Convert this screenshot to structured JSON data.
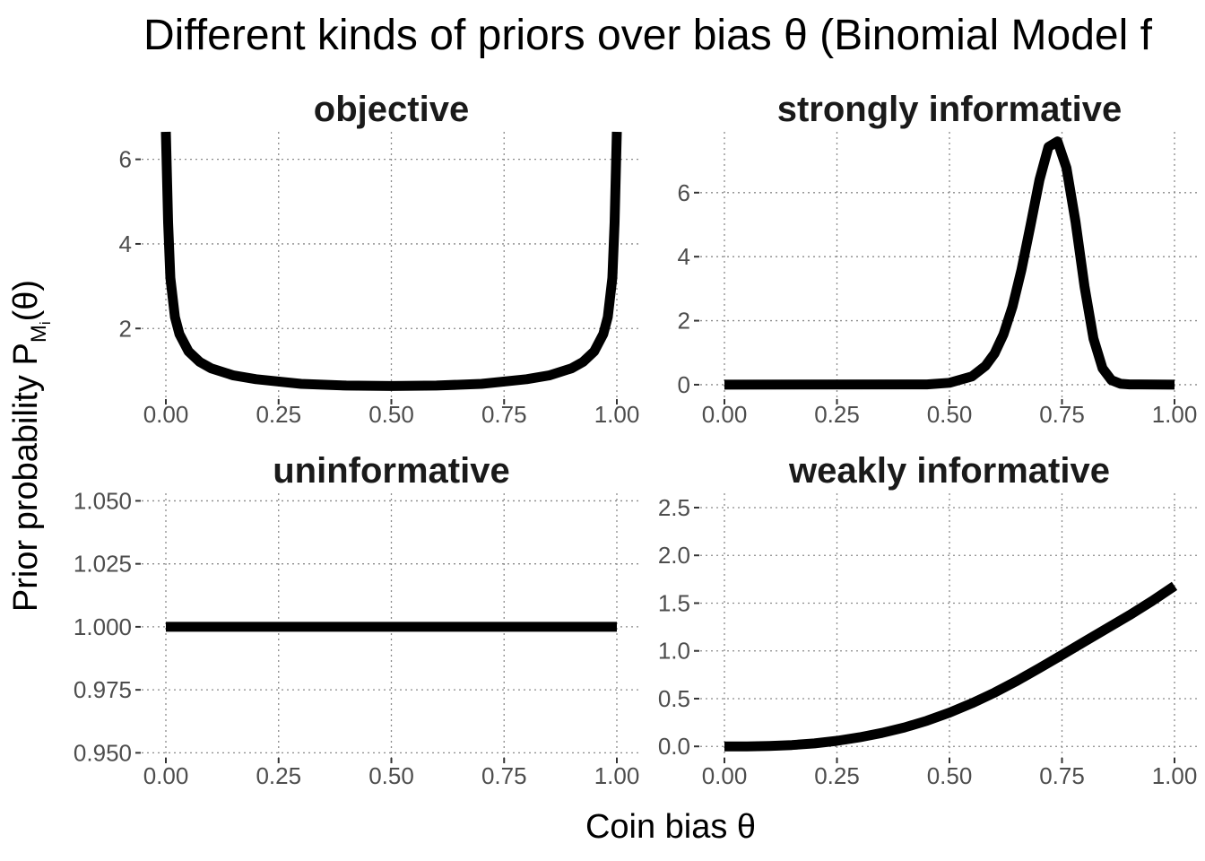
{
  "chart_data": {
    "type": "line",
    "title": "Different kinds of priors over bias θ (Binomial Model f",
    "xlabel": "Coin bias θ",
    "ylabel": {
      "main": "Prior probability P",
      "sub": "M",
      "subsub": "i",
      "suffix": "(θ)"
    },
    "grid": true,
    "legend": "none",
    "color": "#000000",
    "panels": [
      {
        "title": "objective",
        "xlim": [
          0,
          1
        ],
        "ylim": [
          0.33,
          6.65
        ],
        "x_ticks": [
          "0.00",
          "0.25",
          "0.50",
          "0.75",
          "1.00"
        ],
        "y_ticks": [
          "2",
          "4",
          "6"
        ],
        "y_tick_values": [
          2,
          4,
          6
        ],
        "x": [
          0,
          0.005,
          0.01,
          0.02,
          0.03,
          0.05,
          0.075,
          0.1,
          0.15,
          0.2,
          0.3,
          0.4,
          0.5,
          0.6,
          0.7,
          0.8,
          0.85,
          0.9,
          0.925,
          0.95,
          0.97,
          0.98,
          0.99,
          0.995,
          1
        ],
        "y": [
          6.7,
          4.51,
          3.2,
          2.27,
          1.87,
          1.46,
          1.21,
          1.06,
          0.89,
          0.8,
          0.69,
          0.65,
          0.64,
          0.65,
          0.69,
          0.8,
          0.89,
          1.06,
          1.21,
          1.46,
          1.87,
          2.27,
          3.2,
          4.51,
          6.7
        ]
      },
      {
        "title": "strongly informative",
        "xlim": [
          0,
          1
        ],
        "ylim": [
          -0.45,
          7.9
        ],
        "x_ticks": [
          "0.00",
          "0.25",
          "0.50",
          "0.75",
          "1.00"
        ],
        "y_ticks": [
          "0",
          "2",
          "4",
          "6"
        ],
        "y_tick_values": [
          0,
          2,
          4,
          6
        ],
        "x": [
          0,
          0.45,
          0.5,
          0.55,
          0.58,
          0.6,
          0.62,
          0.64,
          0.66,
          0.68,
          0.7,
          0.72,
          0.74,
          0.76,
          0.78,
          0.8,
          0.82,
          0.84,
          0.86,
          0.88,
          0.9,
          1
        ],
        "y": [
          0,
          0.01,
          0.06,
          0.26,
          0.59,
          0.97,
          1.57,
          2.44,
          3.59,
          4.98,
          6.4,
          7.43,
          7.6,
          6.77,
          5.09,
          3.07,
          1.44,
          0.51,
          0.14,
          0.03,
          0.01,
          0
        ]
      },
      {
        "title": "uninformative",
        "xlim": [
          0,
          1
        ],
        "ylim": [
          0.948,
          1.053
        ],
        "x_ticks": [
          "0.00",
          "0.25",
          "0.50",
          "0.75",
          "1.00"
        ],
        "y_ticks": [
          "0.950",
          "0.975",
          "1.000",
          "1.025",
          "1.050"
        ],
        "y_tick_values": [
          0.95,
          0.975,
          1.0,
          1.025,
          1.05
        ],
        "x": [
          0,
          1
        ],
        "y": [
          1,
          1
        ]
      },
      {
        "title": "weakly informative",
        "xlim": [
          0,
          1
        ],
        "ylim": [
          -0.12,
          2.65
        ],
        "x_ticks": [
          "0.00",
          "0.25",
          "0.50",
          "0.75",
          "1.00"
        ],
        "y_ticks": [
          "0.0",
          "0.5",
          "1.0",
          "1.5",
          "2.0",
          "2.5"
        ],
        "y_tick_values": [
          0,
          0.5,
          1.0,
          1.5,
          2.0,
          2.5
        ],
        "x": [
          0,
          0.05,
          0.1,
          0.15,
          0.2,
          0.25,
          0.3,
          0.35,
          0.4,
          0.45,
          0.5,
          0.55,
          0.6,
          0.65,
          0.7,
          0.75,
          0.8,
          0.85,
          0.9,
          0.95,
          1
        ],
        "y": [
          0,
          0.0006,
          0.0045,
          0.0142,
          0.031,
          0.0586,
          0.0946,
          0.1406,
          0.1982,
          0.2688,
          0.3529,
          0.4514,
          0.5626,
          0.6867,
          0.8198,
          0.9578,
          1.0973,
          1.2355,
          1.3736,
          1.5212,
          1.6799
        ]
      }
    ]
  }
}
